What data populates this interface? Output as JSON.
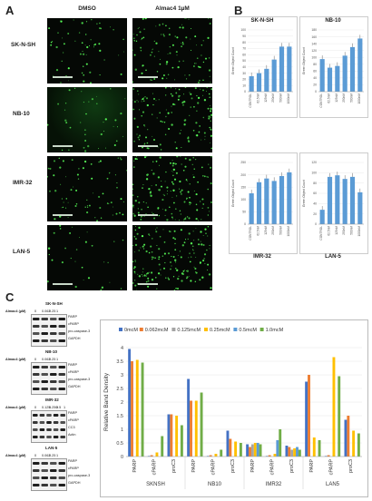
{
  "panelA": {
    "letter": "A",
    "col_headers": [
      "DMSO",
      "Almac4 1µM"
    ],
    "rows": [
      "SK-N-SH",
      "NB-10",
      "IMR-32",
      "LAN-5"
    ]
  },
  "panelB": {
    "letter": "B",
    "charts": [
      {
        "title": "SK-N-SH",
        "ylabel": "Green Object Count",
        "yticks": [
          "0",
          "10",
          "20",
          "30",
          "40",
          "50",
          "60",
          "70",
          "80",
          "90",
          "100"
        ],
        "categories": [
          "CONTROL",
          "62.5nM",
          "125nM",
          "250nM",
          "500nM",
          "1000nM"
        ],
        "values": [
          25,
          30,
          37,
          52,
          73,
          73
        ],
        "ylim": [
          0,
          100
        ]
      },
      {
        "title": "NB-10",
        "ylabel": "Green Object Count",
        "yticks": [
          "0",
          "20",
          "40",
          "60",
          "80",
          "100",
          "120",
          "140",
          "160",
          "180"
        ],
        "categories": [
          "CONTROL",
          "62.5nM",
          "125nM",
          "250nM",
          "500nM",
          "1000nM"
        ],
        "values": [
          95,
          70,
          75,
          105,
          130,
          155
        ],
        "ylim": [
          0,
          180
        ]
      },
      {
        "title": "IMR-32",
        "ylabel": "Green Object Count",
        "yticks": [
          "0",
          "50",
          "100",
          "150",
          "200",
          "250"
        ],
        "categories": [
          "CONTROL",
          "62.5nM",
          "125nM",
          "250nM",
          "500nM",
          "1000nM"
        ],
        "values": [
          125,
          170,
          185,
          175,
          195,
          210
        ],
        "ylim": [
          0,
          250
        ]
      },
      {
        "title": "LAN-5",
        "ylabel": "Green Object Count",
        "yticks": [
          "0",
          "20",
          "40",
          "60",
          "80",
          "100",
          "120"
        ],
        "categories": [
          "CONTROL",
          "62.5nM",
          "125nM",
          "250nM",
          "500nM",
          "1000nM"
        ],
        "values": [
          28,
          92,
          95,
          88,
          92,
          62
        ],
        "ylim": [
          0,
          120
        ]
      }
    ]
  },
  "panelC": {
    "letter": "C",
    "blots": [
      {
        "title": "SK-N-SH",
        "almac_label": "Almac4 (µM)",
        "doses": [
          "0",
          "0.062",
          "0.25",
          "1"
        ],
        "bands": [
          "PARP",
          "cPARP",
          "pro-caspase-3",
          "GAPDH"
        ]
      },
      {
        "title": "NB-10",
        "almac_label": "Almac4 (µM)",
        "doses": [
          "0",
          "0.062",
          "0.25",
          "1"
        ],
        "bands": [
          "PARP",
          "cPARP",
          "pro-caspase-3",
          "GAPDH"
        ]
      },
      {
        "title": "IMR-32",
        "almac_label": "Almac4 (µM)",
        "doses": [
          "0",
          "0.125",
          "0.250",
          "0.5",
          "1"
        ],
        "bands": [
          "PARP",
          "cPARP",
          "CC3",
          "Actin"
        ]
      },
      {
        "title": "LAN-5",
        "almac_label": "Almac4 (µM)",
        "doses": [
          "0",
          "0.062",
          "0.25",
          "1"
        ],
        "bands": [
          "PARP",
          "cPARP",
          "pro-caspase-3",
          "GAPDH"
        ]
      }
    ]
  },
  "chart_data": {
    "type": "bar",
    "ylabel": "Relative Band Density",
    "ylim": [
      0,
      4
    ],
    "yticks": [
      "0",
      "0.5",
      "1",
      "1.5",
      "2",
      "2.5",
      "3",
      "3.5",
      "4"
    ],
    "groups": [
      {
        "name": "SKNSH",
        "categories": [
          "PARP",
          "cPARP",
          "proC3"
        ]
      },
      {
        "name": "NB10",
        "categories": [
          "PARP",
          "cPARP",
          "proC3"
        ]
      },
      {
        "name": "IMR32",
        "categories": [
          "PARP",
          "cPARP",
          "proC3"
        ]
      },
      {
        "name": "LAN5",
        "categories": [
          "PARP",
          "cPARP",
          "proC3"
        ]
      }
    ],
    "legend_position": "top",
    "series": [
      {
        "name": "0mcM",
        "color": "#4472c4",
        "values": [
          3.95,
          0.02,
          1.55,
          2.85,
          0.02,
          0.95,
          0.45,
          0.02,
          0.4,
          2.75,
          0.02,
          1.35
        ]
      },
      {
        "name": "0.062mcM",
        "color": "#ed7d31",
        "values": [
          3.5,
          0.05,
          1.55,
          2.05,
          0.05,
          0.65,
          0.35,
          0.05,
          0.35,
          3.0,
          0.05,
          1.5
        ]
      },
      {
        "name": "0.125mcM",
        "color": "#a5a5a5",
        "values": [
          0.0,
          0.0,
          0.0,
          0.0,
          0.0,
          0.0,
          0.45,
          0.0,
          0.25,
          0.0,
          0.0,
          0.0
        ]
      },
      {
        "name": "0.25mcM",
        "color": "#ffc000",
        "values": [
          3.55,
          0.15,
          1.5,
          2.05,
          0.1,
          0.55,
          0.5,
          0.1,
          0.3,
          0.7,
          3.65,
          0.95
        ]
      },
      {
        "name": "0.5mcM",
        "color": "#5b9bd5",
        "values": [
          0.0,
          0.0,
          0.0,
          0.0,
          0.0,
          0.0,
          0.5,
          0.6,
          0.35,
          0.0,
          0.0,
          0.0
        ]
      },
      {
        "name": "1.0mcM",
        "color": "#70ad47",
        "values": [
          3.45,
          0.75,
          1.15,
          2.35,
          0.25,
          0.5,
          0.45,
          1.0,
          0.25,
          0.6,
          2.95,
          0.85
        ]
      }
    ]
  }
}
